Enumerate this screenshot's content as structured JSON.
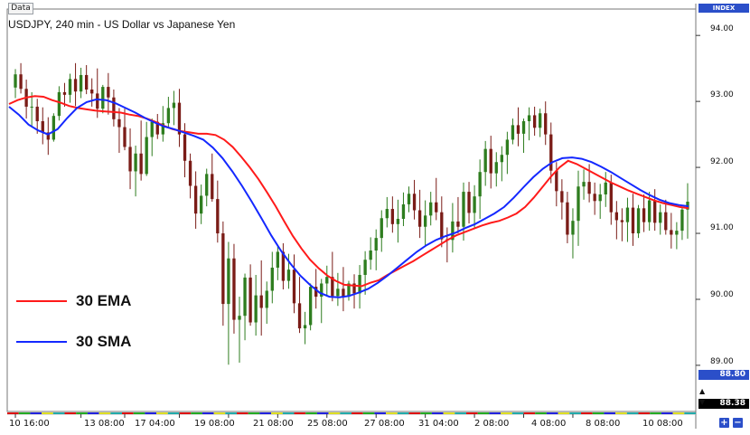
{
  "data_label": "Data",
  "title": "USDJPY, 240 min - US Dollar vs Japanese Yen",
  "index_label": "INDEX",
  "price_box_1": "88.80",
  "price_box_2": "88.38",
  "zoom_in": "+",
  "zoom_out": "−",
  "scroll_up": "▲",
  "scroll_down": "▼",
  "colors": {
    "bull": "#2e7d1f",
    "bear": "#7a1c17",
    "ema": "#ff1a1a",
    "sma": "#1428ff",
    "index_bg": "#2b4fc9"
  },
  "chart_data": {
    "type": "candlestick",
    "title": "USDJPY, 240 min - US Dollar vs Japanese Yen",
    "y_ticks": [
      "94.00",
      "93.00",
      "92.00",
      "91.00",
      "90.00",
      "89.00"
    ],
    "ylim": [
      88.3,
      94.4
    ],
    "x_ticks": [
      "10 16:00",
      "13 08:00",
      "17 04:00",
      "19 08:00",
      "21 08:00",
      "25 08:00",
      "27 08:00",
      "31 04:00",
      "2 08:00",
      "4 08:00",
      "8 08:00",
      "10 08:00"
    ],
    "x_tick_index": [
      0,
      12,
      20,
      30,
      39,
      48,
      57,
      66,
      75,
      84,
      93,
      102
    ],
    "grid": false,
    "candles": [
      [
        93.21,
        93.49,
        93.05,
        93.41
      ],
      [
        93.41,
        93.58,
        93.12,
        93.19
      ],
      [
        93.19,
        93.33,
        92.74,
        92.92
      ],
      [
        92.92,
        93.14,
        92.61,
        92.92
      ],
      [
        92.92,
        93.04,
        92.51,
        92.7
      ],
      [
        92.7,
        92.91,
        92.35,
        92.53
      ],
      [
        92.53,
        92.76,
        92.19,
        92.42
      ],
      [
        92.42,
        92.82,
        92.39,
        92.78
      ],
      [
        92.78,
        93.23,
        92.71,
        93.14
      ],
      [
        93.14,
        93.28,
        92.92,
        93.1
      ],
      [
        93.1,
        93.42,
        92.98,
        93.34
      ],
      [
        93.34,
        93.58,
        92.93,
        93.15
      ],
      [
        93.15,
        93.51,
        93.05,
        93.4
      ],
      [
        93.4,
        93.55,
        93.11,
        93.18
      ],
      [
        93.18,
        93.35,
        92.92,
        93.12
      ],
      [
        93.12,
        93.5,
        92.75,
        92.89
      ],
      [
        92.89,
        93.25,
        92.82,
        93.22
      ],
      [
        93.22,
        93.43,
        92.8,
        93.06
      ],
      [
        93.06,
        93.18,
        92.62,
        92.73
      ],
      [
        92.73,
        92.9,
        92.22,
        92.61
      ],
      [
        92.61,
        92.89,
        92.26,
        92.31
      ],
      [
        92.31,
        92.59,
        91.67,
        91.94
      ],
      [
        91.94,
        92.33,
        91.56,
        92.21
      ],
      [
        92.21,
        92.71,
        91.8,
        91.9
      ],
      [
        91.9,
        92.69,
        91.87,
        92.46
      ],
      [
        92.46,
        92.74,
        92.17,
        92.69
      ],
      [
        92.69,
        92.81,
        92.43,
        92.5
      ],
      [
        92.5,
        92.93,
        92.39,
        92.67
      ],
      [
        92.67,
        93.07,
        92.61,
        92.9
      ],
      [
        92.9,
        93.16,
        92.64,
        92.98
      ],
      [
        92.98,
        93.19,
        92.31,
        92.5
      ],
      [
        92.5,
        92.67,
        91.85,
        92.1
      ],
      [
        92.1,
        92.21,
        91.53,
        91.72
      ],
      [
        91.72,
        91.94,
        91.07,
        91.3
      ],
      [
        91.3,
        91.74,
        91.14,
        91.57
      ],
      [
        91.57,
        91.98,
        91.41,
        91.9
      ],
      [
        91.9,
        92.21,
        91.48,
        91.52
      ],
      [
        91.52,
        91.8,
        90.86,
        91.0
      ],
      [
        91.0,
        91.18,
        89.6,
        89.93
      ],
      [
        89.93,
        90.87,
        89.01,
        90.62
      ],
      [
        90.62,
        90.84,
        89.48,
        89.69
      ],
      [
        89.69,
        90.04,
        89.04,
        89.75
      ],
      [
        89.75,
        90.39,
        89.38,
        90.33
      ],
      [
        90.33,
        90.53,
        89.6,
        89.65
      ],
      [
        89.65,
        90.37,
        89.45,
        90.06
      ],
      [
        90.06,
        90.59,
        89.45,
        89.87
      ],
      [
        89.87,
        90.27,
        89.63,
        90.13
      ],
      [
        90.13,
        90.72,
        89.94,
        90.48
      ],
      [
        90.48,
        90.8,
        90.29,
        90.72
      ],
      [
        90.72,
        90.85,
        90.15,
        90.28
      ],
      [
        90.28,
        90.69,
        90.16,
        90.45
      ],
      [
        90.45,
        90.68,
        89.79,
        89.94
      ],
      [
        89.94,
        90.34,
        89.49,
        89.56
      ],
      [
        89.56,
        89.81,
        89.32,
        89.61
      ],
      [
        89.61,
        90.24,
        89.53,
        90.19
      ],
      [
        90.19,
        90.46,
        89.86,
        90.04
      ],
      [
        90.04,
        90.31,
        89.64,
        90.24
      ],
      [
        90.24,
        90.51,
        90.06,
        90.34
      ],
      [
        90.34,
        90.72,
        89.97,
        90.05
      ],
      [
        90.05,
        90.4,
        89.9,
        90.16
      ],
      [
        90.16,
        90.49,
        89.82,
        90.04
      ],
      [
        90.04,
        90.28,
        89.98,
        90.24
      ],
      [
        90.24,
        90.38,
        89.86,
        90.09
      ],
      [
        90.09,
        90.52,
        89.86,
        90.37
      ],
      [
        90.37,
        90.73,
        90.07,
        90.6
      ],
      [
        90.6,
        90.94,
        90.45,
        90.74
      ],
      [
        90.74,
        91.06,
        90.44,
        90.93
      ],
      [
        90.93,
        91.35,
        90.72,
        91.23
      ],
      [
        91.23,
        91.55,
        91.09,
        91.37
      ],
      [
        91.37,
        91.56,
        91.01,
        91.14
      ],
      [
        91.14,
        91.51,
        90.86,
        91.22
      ],
      [
        91.22,
        91.62,
        91.11,
        91.44
      ],
      [
        91.44,
        91.71,
        91.32,
        91.6
      ],
      [
        91.6,
        91.81,
        91.21,
        91.35
      ],
      [
        91.35,
        91.66,
        90.93,
        91.1
      ],
      [
        91.1,
        91.5,
        90.8,
        91.27
      ],
      [
        91.27,
        91.63,
        91.12,
        91.47
      ],
      [
        91.47,
        91.84,
        91.2,
        91.32
      ],
      [
        91.32,
        91.56,
        90.79,
        90.91
      ],
      [
        90.91,
        91.09,
        90.56,
        90.9
      ],
      [
        90.9,
        91.46,
        90.71,
        91.18
      ],
      [
        91.18,
        91.55,
        91.0,
        91.1
      ],
      [
        91.1,
        91.77,
        90.89,
        91.63
      ],
      [
        91.63,
        91.78,
        91.15,
        91.31
      ],
      [
        91.31,
        91.73,
        91.09,
        91.56
      ],
      [
        91.56,
        92.12,
        91.22,
        91.93
      ],
      [
        91.93,
        92.4,
        91.72,
        92.28
      ],
      [
        92.28,
        92.48,
        91.68,
        91.91
      ],
      [
        91.91,
        92.23,
        91.71,
        92.08
      ],
      [
        92.08,
        92.32,
        91.79,
        92.19
      ],
      [
        92.19,
        92.54,
        91.9,
        92.42
      ],
      [
        92.42,
        92.74,
        92.35,
        92.64
      ],
      [
        92.64,
        92.91,
        92.32,
        92.51
      ],
      [
        92.51,
        92.74,
        92.22,
        92.7
      ],
      [
        92.7,
        92.91,
        92.41,
        92.79
      ],
      [
        92.79,
        92.92,
        92.48,
        92.6
      ],
      [
        92.6,
        92.89,
        92.46,
        92.82
      ],
      [
        92.82,
        93.0,
        92.34,
        92.5
      ],
      [
        92.5,
        92.68,
        91.76,
        91.95
      ],
      [
        91.95,
        92.08,
        91.41,
        91.64
      ],
      [
        91.64,
        91.82,
        91.21,
        91.47
      ],
      [
        91.47,
        91.63,
        90.85,
        90.98
      ],
      [
        90.98,
        91.38,
        90.62,
        91.19
      ],
      [
        91.19,
        91.95,
        90.81,
        91.71
      ],
      [
        91.71,
        91.97,
        91.51,
        91.78
      ],
      [
        91.78,
        92.05,
        91.47,
        91.6
      ],
      [
        91.6,
        91.77,
        91.28,
        91.49
      ],
      [
        91.49,
        91.75,
        91.22,
        91.59
      ],
      [
        91.59,
        91.93,
        91.4,
        91.77
      ],
      [
        91.77,
        91.89,
        91.13,
        91.32
      ],
      [
        91.32,
        91.49,
        90.91,
        91.2
      ],
      [
        91.2,
        91.38,
        90.88,
        91.17
      ],
      [
        91.17,
        91.54,
        90.87,
        91.39
      ],
      [
        91.39,
        91.6,
        90.81,
        91.0
      ],
      [
        91.0,
        91.43,
        90.93,
        91.38
      ],
      [
        91.38,
        91.59,
        91.02,
        91.17
      ],
      [
        91.17,
        91.63,
        91.04,
        91.5
      ],
      [
        91.5,
        91.67,
        91.04,
        91.16
      ],
      [
        91.16,
        91.44,
        90.98,
        91.32
      ],
      [
        91.32,
        91.51,
        90.98,
        91.05
      ],
      [
        91.05,
        91.31,
        90.77,
        90.98
      ],
      [
        90.98,
        91.17,
        90.76,
        91.04
      ],
      [
        91.04,
        91.4,
        90.9,
        91.36
      ],
      [
        91.36,
        91.76,
        90.92,
        91.48
      ]
    ],
    "series": [
      {
        "name": "30 EMA",
        "color": "#ff1a1a",
        "values": [
          92.96,
          93.02,
          93.06,
          93.08,
          93.07,
          93.02,
          92.98,
          92.93,
          92.9,
          92.88,
          92.86,
          92.85,
          92.84,
          92.83,
          92.8,
          92.78,
          92.74,
          92.69,
          92.63,
          92.58,
          92.55,
          92.53,
          92.51,
          92.51,
          92.49,
          92.42,
          92.31,
          92.16,
          92.0,
          91.82,
          91.62,
          91.41,
          91.18,
          90.96,
          90.77,
          90.6,
          90.47,
          90.36,
          90.28,
          90.22,
          90.21,
          90.2,
          90.25,
          90.29,
          90.37,
          90.44,
          90.51,
          90.58,
          90.66,
          90.74,
          90.82,
          90.9,
          90.97,
          91.02,
          91.07,
          91.12,
          91.16,
          91.19,
          91.24,
          91.3,
          91.4,
          91.54,
          91.7,
          91.86,
          92.0,
          92.1,
          92.05,
          91.98,
          91.91,
          91.84,
          91.77,
          91.71,
          91.65,
          91.6,
          91.55,
          91.5,
          91.46,
          91.43,
          91.4,
          91.38
        ]
      },
      {
        "name": "30 SMA",
        "color": "#1428ff",
        "values": [
          92.92,
          92.8,
          92.65,
          92.56,
          92.5,
          92.58,
          92.75,
          92.9,
          92.99,
          93.03,
          93.02,
          92.97,
          92.9,
          92.83,
          92.75,
          92.68,
          92.62,
          92.58,
          92.53,
          92.48,
          92.42,
          92.3,
          92.14,
          91.94,
          91.72,
          91.48,
          91.23,
          90.97,
          90.74,
          90.54,
          90.36,
          90.22,
          90.1,
          90.04,
          90.03,
          90.05,
          90.1,
          90.16,
          90.25,
          90.36,
          90.48,
          90.6,
          90.72,
          90.82,
          90.9,
          90.96,
          91.01,
          91.08,
          91.14,
          91.22,
          91.3,
          91.4,
          91.54,
          91.7,
          91.85,
          91.98,
          92.08,
          92.14,
          92.15,
          92.13,
          92.08,
          92.01,
          91.93,
          91.84,
          91.75,
          91.66,
          91.58,
          91.51,
          91.46,
          91.43,
          91.41
        ]
      }
    ],
    "legend": [
      "30 EMA",
      "30 SMA"
    ],
    "legend_placement": "left"
  }
}
